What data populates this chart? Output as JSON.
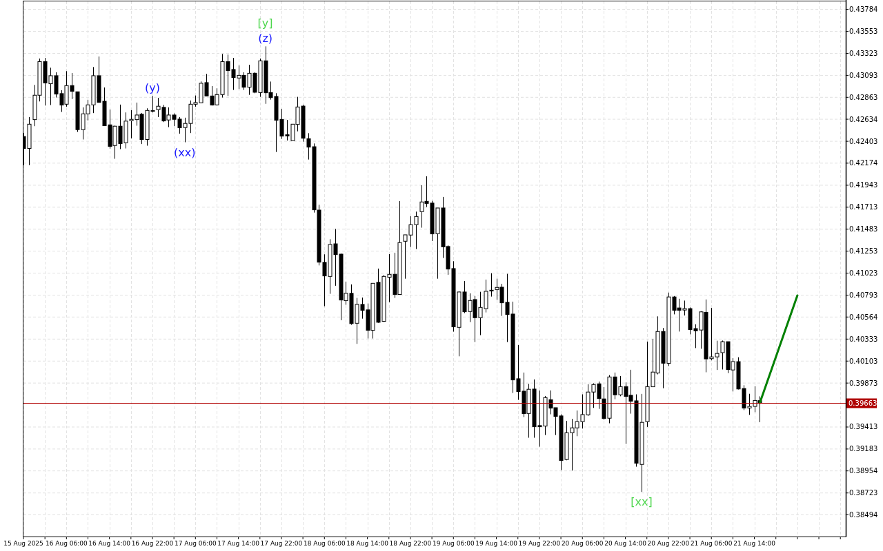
{
  "chart_data": {
    "type": "candlestick",
    "series": [
      {
        "type": "candlestick",
        "color": "#000000",
        "x": [
          "2025-08-15T22:00",
          "2025-08-15T23:00",
          "2025-08-16T00:00",
          "2025-08-16T01:00",
          "2025-08-16T02:00",
          "2025-08-16T03:00",
          "2025-08-16T04:00",
          "2025-08-16T05:00",
          "2025-08-16T06:00",
          "2025-08-16T07:00",
          "2025-08-16T08:00",
          "2025-08-16T09:00",
          "2025-08-16T10:00",
          "2025-08-16T11:00",
          "2025-08-16T12:00",
          "2025-08-16T13:00",
          "2025-08-16T14:00",
          "2025-08-16T15:00",
          "2025-08-16T16:00",
          "2025-08-16T17:00",
          "2025-08-16T18:00",
          "2025-08-16T19:00",
          "2025-08-16T20:00",
          "2025-08-16T21:00",
          "2025-08-16T22:00",
          "2025-08-16T23:00",
          "2025-08-17T00:00",
          "2025-08-17T01:00",
          "2025-08-17T02:00",
          "2025-08-17T03:00",
          "2025-08-17T04:00",
          "2025-08-17T05:00",
          "2025-08-17T06:00",
          "2025-08-17T07:00",
          "2025-08-17T08:00",
          "2025-08-17T09:00",
          "2025-08-17T10:00",
          "2025-08-17T11:00",
          "2025-08-17T12:00",
          "2025-08-17T13:00",
          "2025-08-17T14:00",
          "2025-08-17T15:00",
          "2025-08-17T16:00",
          "2025-08-17T17:00",
          "2025-08-17T18:00",
          "2025-08-17T19:00",
          "2025-08-17T20:00",
          "2025-08-17T21:00",
          "2025-08-17T22:00",
          "2025-08-17T23:00",
          "2025-08-18T00:00",
          "2025-08-18T01:00",
          "2025-08-18T02:00",
          "2025-08-18T03:00",
          "2025-08-18T04:00",
          "2025-08-18T05:00",
          "2025-08-18T06:00",
          "2025-08-18T07:00",
          "2025-08-18T08:00",
          "2025-08-18T09:00",
          "2025-08-18T10:00",
          "2025-08-18T11:00",
          "2025-08-18T12:00",
          "2025-08-18T13:00",
          "2025-08-18T14:00",
          "2025-08-18T15:00",
          "2025-08-18T16:00",
          "2025-08-18T17:00",
          "2025-08-18T18:00",
          "2025-08-18T19:00",
          "2025-08-18T20:00",
          "2025-08-18T21:00",
          "2025-08-18T22:00",
          "2025-08-18T23:00",
          "2025-08-19T00:00",
          "2025-08-19T01:00",
          "2025-08-19T02:00",
          "2025-08-19T03:00",
          "2025-08-19T04:00",
          "2025-08-19T05:00",
          "2025-08-19T06:00",
          "2025-08-19T07:00",
          "2025-08-19T08:00",
          "2025-08-19T09:00",
          "2025-08-19T10:00",
          "2025-08-19T11:00",
          "2025-08-19T12:00",
          "2025-08-19T13:00",
          "2025-08-19T14:00",
          "2025-08-19T15:00",
          "2025-08-19T16:00",
          "2025-08-19T17:00",
          "2025-08-19T18:00",
          "2025-08-19T19:00",
          "2025-08-19T20:00",
          "2025-08-19T21:00",
          "2025-08-19T22:00",
          "2025-08-19T23:00",
          "2025-08-20T00:00",
          "2025-08-20T01:00",
          "2025-08-20T02:00",
          "2025-08-20T03:00",
          "2025-08-20T04:00",
          "2025-08-20T05:00",
          "2025-08-20T06:00",
          "2025-08-20T07:00",
          "2025-08-20T08:00",
          "2025-08-20T09:00",
          "2025-08-20T10:00",
          "2025-08-20T11:00",
          "2025-08-20T12:00",
          "2025-08-20T13:00",
          "2025-08-20T14:00",
          "2025-08-20T15:00",
          "2025-08-20T16:00",
          "2025-08-20T17:00",
          "2025-08-20T18:00",
          "2025-08-20T19:00",
          "2025-08-20T20:00",
          "2025-08-20T21:00",
          "2025-08-20T22:00",
          "2025-08-20T23:00",
          "2025-08-21T00:00",
          "2025-08-21T01:00",
          "2025-08-21T02:00",
          "2025-08-21T03:00",
          "2025-08-21T04:00",
          "2025-08-21T05:00",
          "2025-08-21T06:00",
          "2025-08-21T07:00",
          "2025-08-21T08:00",
          "2025-08-21T09:00",
          "2025-08-21T10:00",
          "2025-08-21T11:00",
          "2025-08-21T12:00",
          "2025-08-21T13:00",
          "2025-08-21T14:00",
          "2025-08-21T15:00"
        ],
        "ohlc": [
          [
            0.42453,
            0.42489,
            0.42153,
            0.42328
          ],
          [
            0.42328,
            0.42657,
            0.42153,
            0.42582
          ],
          [
            0.4263,
            0.42993,
            0.42561,
            0.42885
          ],
          [
            0.42885,
            0.43269,
            0.4282,
            0.43237
          ],
          [
            0.43237,
            0.43276,
            0.42777,
            0.43014
          ],
          [
            0.43005,
            0.43173,
            0.42782,
            0.43089
          ],
          [
            0.43089,
            0.43125,
            0.42861,
            0.42897
          ],
          [
            0.42902,
            0.42938,
            0.4271,
            0.42782
          ],
          [
            0.42791,
            0.43137,
            0.42765,
            0.42986
          ],
          [
            0.42986,
            0.43118,
            0.42844,
            0.42926
          ],
          [
            0.42921,
            0.42921,
            0.42501,
            0.42525
          ],
          [
            0.42525,
            0.42758,
            0.42422,
            0.4269
          ],
          [
            0.4269,
            0.42837,
            0.42621,
            0.42784
          ],
          [
            0.42784,
            0.4318,
            0.42698,
            0.43089
          ],
          [
            0.43089,
            0.4329,
            0.4281,
            0.4281
          ],
          [
            0.42822,
            0.42966,
            0.42566,
            0.42566
          ],
          [
            0.42575,
            0.42736,
            0.42326,
            0.4235
          ],
          [
            0.42359,
            0.42566,
            0.4222,
            0.42561
          ],
          [
            0.42561,
            0.42787,
            0.42321,
            0.42379
          ],
          [
            0.42388,
            0.42705,
            0.42328,
            0.42614
          ],
          [
            0.42618,
            0.42729,
            0.42434,
            0.42633
          ],
          [
            0.4263,
            0.42808,
            0.42566,
            0.42678
          ],
          [
            0.42686,
            0.427,
            0.42374,
            0.42422
          ],
          [
            0.42422,
            0.42748,
            0.42357,
            0.42726
          ],
          [
            0.42724,
            0.42877,
            0.42705,
            0.42724
          ],
          [
            0.42734,
            0.42858,
            0.42657,
            0.4277
          ],
          [
            0.42758,
            0.42784,
            0.42604,
            0.42616
          ],
          [
            0.42626,
            0.42758,
            0.42551,
            0.42678
          ],
          [
            0.42678,
            0.42695,
            0.42561,
            0.42633
          ],
          [
            0.42635,
            0.42657,
            0.42482,
            0.42544
          ],
          [
            0.42547,
            0.4265,
            0.42393,
            0.4259
          ],
          [
            0.4259,
            0.4283,
            0.42489,
            0.42791
          ],
          [
            0.42791,
            0.42882,
            0.42765,
            0.42808
          ],
          [
            0.42806,
            0.43029,
            0.42806,
            0.4301
          ],
          [
            0.43017,
            0.43108,
            0.42877,
            0.42877
          ],
          [
            0.42877,
            0.42981,
            0.42777,
            0.42782
          ],
          [
            0.42784,
            0.42957,
            0.42777,
            0.42892
          ],
          [
            0.42892,
            0.43317,
            0.42861,
            0.43237
          ],
          [
            0.43237,
            0.4331,
            0.42877,
            0.43142
          ],
          [
            0.43154,
            0.43276,
            0.4294,
            0.4307
          ],
          [
            0.43065,
            0.43197,
            0.42949,
            0.43093
          ],
          [
            0.43093,
            0.43125,
            0.4294,
            0.42969
          ],
          [
            0.42969,
            0.43204,
            0.42889,
            0.43115
          ],
          [
            0.43115,
            0.43125,
            0.42906,
            0.42916
          ],
          [
            0.42913,
            0.43269,
            0.42868,
            0.43245
          ],
          [
            0.43245,
            0.43396,
            0.42795,
            0.42911
          ],
          [
            0.42913,
            0.43028,
            0.42839,
            0.4286
          ],
          [
            0.42872,
            0.42906,
            0.42291,
            0.42623
          ],
          [
            0.42632,
            0.42743,
            0.42428,
            0.42457
          ],
          [
            0.42471,
            0.42627,
            0.42411,
            0.42459
          ],
          [
            0.42409,
            0.42582,
            0.42409,
            0.42582
          ],
          [
            0.42579,
            0.42868,
            0.42507,
            0.42762
          ],
          [
            0.42771,
            0.42786,
            0.42399,
            0.42435
          ],
          [
            0.4243,
            0.42488,
            0.42212,
            0.42342
          ],
          [
            0.42346,
            0.4238,
            0.41657,
            0.41686
          ],
          [
            0.41683,
            0.41739,
            0.41104,
            0.41138
          ],
          [
            0.41136,
            0.4122,
            0.40677,
            0.40994
          ],
          [
            0.40989,
            0.41378,
            0.40807,
            0.41323
          ],
          [
            0.4133,
            0.41486,
            0.40891,
            0.41217
          ],
          [
            0.41222,
            0.41227,
            0.4053,
            0.40742
          ],
          [
            0.40735,
            0.40934,
            0.40692,
            0.40812
          ],
          [
            0.40812,
            0.40905,
            0.40483,
            0.40495
          ],
          [
            0.40499,
            0.40764,
            0.40283,
            0.40696
          ],
          [
            0.40696,
            0.40768,
            0.40547,
            0.40634
          ],
          [
            0.40639,
            0.40706,
            0.40339,
            0.40425
          ],
          [
            0.40425,
            0.40917,
            0.40339,
            0.40917
          ],
          [
            0.40927,
            0.41071,
            0.40504,
            0.40509
          ],
          [
            0.40519,
            0.41004,
            0.40514,
            0.40989
          ],
          [
            0.4098,
            0.41222,
            0.4072,
            0.41011
          ],
          [
            0.41011,
            0.41237,
            0.40764,
            0.408
          ],
          [
            0.408,
            0.41777,
            0.408,
            0.41343
          ],
          [
            0.41357,
            0.41424,
            0.40965,
            0.41424
          ],
          [
            0.41422,
            0.41619,
            0.41297,
            0.4153
          ],
          [
            0.4153,
            0.41667,
            0.41275,
            0.41616
          ],
          [
            0.41667,
            0.41943,
            0.41499,
            0.41768
          ],
          [
            0.41775,
            0.42037,
            0.41715,
            0.41753
          ],
          [
            0.41756,
            0.4178,
            0.41359,
            0.41434
          ],
          [
            0.41436,
            0.41705,
            0.40965,
            0.41705
          ],
          [
            0.41705,
            0.41821,
            0.41182,
            0.41299
          ],
          [
            0.41302,
            0.41314,
            0.41006,
            0.41066
          ],
          [
            0.41071,
            0.41148,
            0.40411,
            0.40461
          ],
          [
            0.40456,
            0.40831,
            0.40153,
            0.40826
          ],
          [
            0.40826,
            0.40941,
            0.40605,
            0.40619
          ],
          [
            0.40622,
            0.40812,
            0.40511,
            0.40737
          ],
          [
            0.40747,
            0.40783,
            0.40302,
            0.40557
          ],
          [
            0.40557,
            0.40828,
            0.40374,
            0.40665
          ],
          [
            0.40651,
            0.40956,
            0.40612,
            0.40833
          ],
          [
            0.40845,
            0.41023,
            0.40778,
            0.40836
          ],
          [
            0.40852,
            0.40965,
            0.40744,
            0.40874
          ],
          [
            0.40876,
            0.40912,
            0.40576,
            0.40713
          ],
          [
            0.40718,
            0.41016,
            0.40302,
            0.40591
          ],
          [
            0.40595,
            0.40725,
            0.39769,
            0.39906
          ],
          [
            0.39918,
            0.40271,
            0.39697,
            0.39784
          ],
          [
            0.39788,
            0.39983,
            0.39517,
            0.39553
          ],
          [
            0.39555,
            0.39865,
            0.39301,
            0.39808
          ],
          [
            0.3981,
            0.39911,
            0.39301,
            0.39416
          ],
          [
            0.39428,
            0.39796,
            0.39207,
            0.39416
          ],
          [
            0.39423,
            0.39738,
            0.39329,
            0.39721
          ],
          [
            0.39699,
            0.39796,
            0.39546,
            0.39611
          ],
          [
            0.39615,
            0.39615,
            0.39329,
            0.39524
          ],
          [
            0.39529,
            0.39546,
            0.38962,
            0.39063
          ],
          [
            0.39073,
            0.39478,
            0.39065,
            0.39353
          ],
          [
            0.39353,
            0.39498,
            0.38957,
            0.39404
          ],
          [
            0.39404,
            0.39586,
            0.39317,
            0.39469
          ],
          [
            0.39469,
            0.39755,
            0.39397,
            0.39543
          ],
          [
            0.39541,
            0.3986,
            0.39529,
            0.39779
          ],
          [
            0.39779,
            0.3987,
            0.39613,
            0.39858
          ],
          [
            0.39865,
            0.39889,
            0.39603,
            0.39711
          ],
          [
            0.39707,
            0.39831,
            0.3949,
            0.39502
          ],
          [
            0.39505,
            0.39956,
            0.39452,
            0.39937
          ],
          [
            0.39937,
            0.39983,
            0.39704,
            0.3975
          ],
          [
            0.3975,
            0.39947,
            0.39735,
            0.39836
          ],
          [
            0.39836,
            0.3988,
            0.39236,
            0.39733
          ],
          [
            0.39745,
            0.40012,
            0.39553,
            0.39683
          ],
          [
            0.39687,
            0.39755,
            0.38998,
            0.39034
          ],
          [
            0.39022,
            0.3976,
            0.38734,
            0.39462
          ],
          [
            0.39469,
            0.40307,
            0.39414,
            0.39836
          ],
          [
            0.39834,
            0.40336,
            0.39834,
            0.39988
          ],
          [
            0.39978,
            0.40571,
            0.39964,
            0.40413
          ],
          [
            0.40413,
            0.40449,
            0.39819,
            0.40081
          ],
          [
            0.4008,
            0.4082,
            0.40051,
            0.40774
          ],
          [
            0.40774,
            0.40784,
            0.40592,
            0.40635
          ],
          [
            0.40659,
            0.40755,
            0.40412,
            0.40635
          ],
          [
            0.40637,
            0.40736,
            0.4058,
            0.40652
          ],
          [
            0.40652,
            0.40664,
            0.40383,
            0.40433
          ],
          [
            0.40443,
            0.40488,
            0.40239,
            0.40419
          ],
          [
            0.40428,
            0.40625,
            0.40232,
            0.40618
          ],
          [
            0.40613,
            0.40748,
            0.39986,
            0.40126
          ],
          [
            0.40128,
            0.40659,
            0.40111,
            0.40147
          ],
          [
            0.40147,
            0.40316,
            0.4001,
            0.40183
          ],
          [
            0.40191,
            0.40318,
            0.40015,
            0.40306
          ],
          [
            0.40306,
            0.40306,
            0.39977,
            0.40015
          ],
          [
            0.4001,
            0.40133,
            0.39785,
            0.40097
          ],
          [
            0.40097,
            0.40143,
            0.39806,
            0.39811
          ],
          [
            0.39816,
            0.3985,
            0.3959,
            0.39612
          ],
          [
            0.39612,
            0.39761,
            0.3954,
            0.39629
          ],
          [
            0.39629,
            0.3984,
            0.39568,
            0.39691
          ],
          [
            0.39689,
            0.39734,
            0.39463,
            0.39663
          ]
        ]
      },
      {
        "type": "line",
        "color": "#008000",
        "x": [
          "2025-08-21T15:00",
          "2025-08-21T22:00"
        ],
        "values": [
          0.39663,
          0.4079
        ]
      }
    ],
    "xlim": [
      "2025-08-15T22:00",
      "2025-08-22T07:00"
    ],
    "xticks": [
      {
        "value": "2025-08-15T22:00",
        "label": "15 Aug 2025"
      },
      {
        "value": "2025-08-16T02:00",
        "label": null
      },
      {
        "value": "2025-08-16T06:00",
        "label": "16 Aug 06:00"
      },
      {
        "value": "2025-08-16T10:00",
        "label": null
      },
      {
        "value": "2025-08-16T14:00",
        "label": "16 Aug 14:00"
      },
      {
        "value": "2025-08-16T18:00",
        "label": null
      },
      {
        "value": "2025-08-16T22:00",
        "label": "16 Aug 22:00"
      },
      {
        "value": "2025-08-17T02:00",
        "label": null
      },
      {
        "value": "2025-08-17T06:00",
        "label": "17 Aug 06:00"
      },
      {
        "value": "2025-08-17T10:00",
        "label": null
      },
      {
        "value": "2025-08-17T14:00",
        "label": "17 Aug 14:00"
      },
      {
        "value": "2025-08-17T18:00",
        "label": null
      },
      {
        "value": "2025-08-17T22:00",
        "label": "17 Aug 22:00"
      },
      {
        "value": "2025-08-18T02:00",
        "label": null
      },
      {
        "value": "2025-08-18T06:00",
        "label": "18 Aug 06:00"
      },
      {
        "value": "2025-08-18T10:00",
        "label": null
      },
      {
        "value": "2025-08-18T14:00",
        "label": "18 Aug 14:00"
      },
      {
        "value": "2025-08-18T18:00",
        "label": null
      },
      {
        "value": "2025-08-18T22:00",
        "label": "18 Aug 22:00"
      },
      {
        "value": "2025-08-19T02:00",
        "label": null
      },
      {
        "value": "2025-08-19T06:00",
        "label": "19 Aug 06:00"
      },
      {
        "value": "2025-08-19T10:00",
        "label": null
      },
      {
        "value": "2025-08-19T14:00",
        "label": "19 Aug 14:00"
      },
      {
        "value": "2025-08-19T18:00",
        "label": null
      },
      {
        "value": "2025-08-19T22:00",
        "label": "19 Aug 22:00"
      },
      {
        "value": "2025-08-20T02:00",
        "label": null
      },
      {
        "value": "2025-08-20T06:00",
        "label": "20 Aug 06:00"
      },
      {
        "value": "2025-08-20T10:00",
        "label": null
      },
      {
        "value": "2025-08-20T14:00",
        "label": "20 Aug 14:00"
      },
      {
        "value": "2025-08-20T18:00",
        "label": null
      },
      {
        "value": "2025-08-20T22:00",
        "label": "20 Aug 22:00"
      },
      {
        "value": "2025-08-21T02:00",
        "label": null
      },
      {
        "value": "2025-08-21T06:00",
        "label": "21 Aug 06:00"
      },
      {
        "value": "2025-08-21T10:00",
        "label": null
      },
      {
        "value": "2025-08-21T14:00",
        "label": "21 Aug 14:00"
      },
      {
        "value": "2025-08-21T18:00",
        "label": null
      },
      {
        "value": "2025-08-21T22:00",
        "label": null
      },
      {
        "value": "2025-08-22T02:00",
        "label": null
      },
      {
        "value": "2025-08-22T06:00",
        "label": null
      }
    ],
    "ylim": [
      0.38267,
      0.43867
    ],
    "yticks": [
      0.38494,
      0.38723,
      0.38954,
      0.39183,
      0.39413,
      0.39873,
      0.40103,
      0.40333,
      0.40564,
      0.40793,
      0.41023,
      0.41253,
      0.41483,
      0.41713,
      0.41943,
      0.42174,
      0.42403,
      0.42634,
      0.42863,
      0.43093,
      0.43323,
      0.43553,
      0.43784
    ],
    "grid": true,
    "ref_lines": [
      {
        "axis": "y",
        "value": 0.39663,
        "label": "0.39663",
        "color": "#b00000"
      }
    ],
    "annotations": [
      {
        "text": "(y)",
        "x": "2025-08-16T22:00",
        "y": 0.42877
      },
      {
        "text": "(xx)",
        "x": "2025-08-17T04:00",
        "y": 0.42393
      },
      {
        "text": "(z)",
        "x": "2025-08-17T19:00",
        "y": 0.43396
      },
      {
        "text": "[y]",
        "x": "2025-08-17T19:00",
        "y": 0.43396
      },
      {
        "text": "[xx]",
        "x": "2025-08-20T17:00",
        "y": 0.38734
      }
    ]
  }
}
